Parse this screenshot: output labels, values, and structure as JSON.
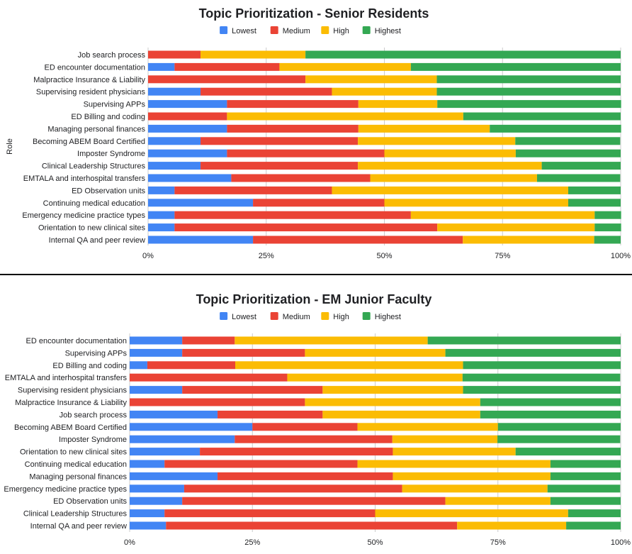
{
  "chart_data": [
    {
      "type": "bar",
      "orientation": "horizontal",
      "stacked": "percent",
      "title": "Topic Prioritization - Senior Residents",
      "ylabel": "Role",
      "xlabel": "",
      "xlim": [
        0,
        100
      ],
      "x_ticks": [
        "0%",
        "25%",
        "50%",
        "75%",
        "100%"
      ],
      "legend": {
        "placement": "top",
        "labels": [
          "Lowest",
          "Medium",
          "High",
          "Highest"
        ]
      },
      "colors": {
        "Lowest": "#4285f4",
        "Medium": "#ea4335",
        "High": "#fbbc04",
        "Highest": "#34a853"
      },
      "categories": [
        "Job search process",
        "ED encounter documentation",
        "Malpractice Insurance & Liability",
        "Supervising resident physicians",
        "Supervising APPs",
        "ED Billing and coding",
        "Managing personal finances",
        "Becoming ABEM Board Certified",
        "Imposter Syndrome",
        "Clinical Leadership Structures",
        "EMTALA and interhospital transfers",
        "ED Observation units",
        "Continuing medical education",
        "Emergency medicine practice types",
        "Orientation to new clinical sites",
        "Internal QA and peer review"
      ],
      "series": [
        {
          "name": "Lowest",
          "values": [
            0,
            5.6,
            0,
            11.1,
            16.7,
            0,
            16.7,
            11.1,
            16.7,
            11.1,
            17.6,
            5.6,
            22.2,
            5.6,
            5.6,
            22.2
          ]
        },
        {
          "name": "Medium",
          "values": [
            11.1,
            22.2,
            33.3,
            27.8,
            27.8,
            16.7,
            27.8,
            33.3,
            33.3,
            33.3,
            29.4,
            33.3,
            27.8,
            50.0,
            55.6,
            44.4
          ]
        },
        {
          "name": "High",
          "values": [
            22.2,
            27.8,
            27.8,
            22.2,
            16.7,
            50.0,
            27.8,
            33.3,
            27.8,
            38.9,
            35.3,
            50.0,
            38.9,
            38.9,
            33.3,
            27.8
          ]
        },
        {
          "name": "Highest",
          "values": [
            66.7,
            44.4,
            38.9,
            38.9,
            38.9,
            33.3,
            27.8,
            22.2,
            22.2,
            16.7,
            17.6,
            11.1,
            11.1,
            5.6,
            5.6,
            5.6
          ]
        }
      ]
    },
    {
      "type": "bar",
      "orientation": "horizontal",
      "stacked": "percent",
      "title": "Topic Prioritization - EM Junior Faculty",
      "ylabel": "",
      "xlabel": "",
      "xlim": [
        0,
        100
      ],
      "x_ticks": [
        "0%",
        "25%",
        "50%",
        "75%",
        "100%"
      ],
      "legend": {
        "placement": "top",
        "labels": [
          "Lowest",
          "Medium",
          "High",
          "Highest"
        ]
      },
      "colors": {
        "Lowest": "#4285f4",
        "Medium": "#ea4335",
        "High": "#fbbc04",
        "Highest": "#34a853"
      },
      "categories": [
        "ED encounter documentation",
        "Supervising APPs",
        "ED Billing and coding",
        "EMTALA and interhospital transfers",
        "Supervising resident physicians",
        "Malpractice Insurance & Liability",
        "Job search process",
        "Becoming ABEM Board Certified",
        "Imposter Syndrome",
        "Orientation to new clinical sites",
        "Continuing medical education",
        "Managing personal finances",
        "Emergency medicine practice types",
        "ED Observation units",
        "Clinical Leadership Structures",
        "Internal QA and peer review"
      ],
      "series": [
        {
          "name": "Lowest",
          "values": [
            10.7,
            10.7,
            3.6,
            0,
            10.7,
            0,
            17.9,
            25.0,
            21.4,
            14.3,
            7.1,
            17.9,
            11.1,
            10.7,
            7.1,
            7.4
          ]
        },
        {
          "name": "Medium",
          "values": [
            10.7,
            25.0,
            17.9,
            32.1,
            28.6,
            35.7,
            21.4,
            21.4,
            32.1,
            39.3,
            39.3,
            35.7,
            44.4,
            53.6,
            42.9,
            59.3
          ]
        },
        {
          "name": "High",
          "values": [
            39.3,
            28.6,
            46.4,
            35.7,
            28.6,
            35.7,
            32.1,
            28.6,
            21.4,
            25.0,
            39.3,
            32.1,
            29.6,
            21.4,
            39.3,
            22.2
          ]
        },
        {
          "name": "Highest",
          "values": [
            39.3,
            35.7,
            32.1,
            32.1,
            32.1,
            28.6,
            28.6,
            25.0,
            25.0,
            21.4,
            14.3,
            14.3,
            14.8,
            14.3,
            10.7,
            11.1
          ]
        }
      ]
    }
  ]
}
